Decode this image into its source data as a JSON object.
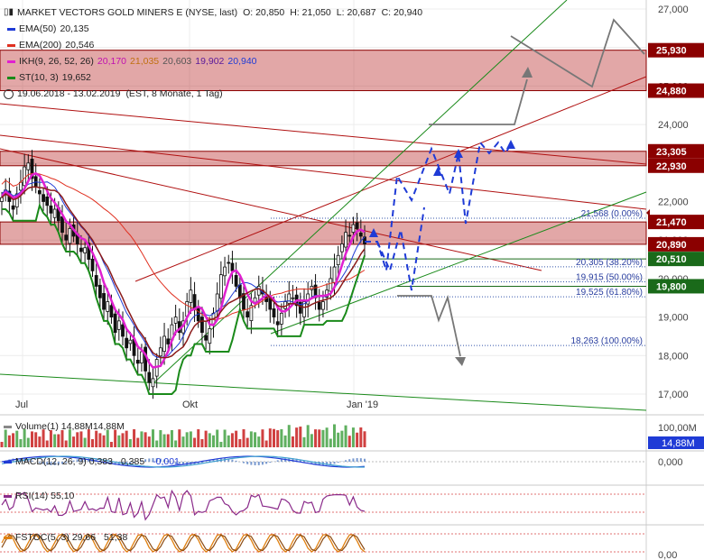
{
  "header": {
    "title": "MARKET VECTORS GOLD MINERS E (NYSE, last)",
    "o": "O: 20,850",
    "h": "H: 21,050",
    "l": "L: 20,687",
    "c": "C: 20,940",
    "range": "19.06.2018 - 13.02.2019",
    "range_note": "(EST, 8 Monate, 1 Tag)"
  },
  "legend": [
    {
      "label": "EMA(50)",
      "value": "20,135",
      "color": "#1f3bd6"
    },
    {
      "label": "EMA(200)",
      "value": "20,546",
      "color": "#e03020"
    },
    {
      "label": "IKH(9, 26, 52, 26)",
      "values": [
        "20,170",
        "21,035",
        "20,603",
        "19,902",
        "20,940"
      ],
      "value_colors": [
        "#d020c0",
        "#d07020",
        "#606060",
        "#6020a0",
        "#1f3bd6"
      ],
      "color": "#e020d0"
    },
    {
      "label": "ST(10, 3)",
      "value": "19,652",
      "color": "#1a8a1a"
    }
  ],
  "panels": {
    "volume": {
      "label": "Volume(1)",
      "value": "14,88M",
      "value2": "14,88M",
      "axis_top": "100,00M",
      "badge": "14,88M"
    },
    "macd": {
      "label": "MACD(12, 26, 9)",
      "values": [
        "0,383",
        "0,385",
        "-0,001"
      ],
      "axis": "0,000"
    },
    "rsi": {
      "label": "RSI(14)",
      "value": "55,10"
    },
    "fstoc": {
      "label": "FSTOC(5, 3)",
      "values": [
        "29,66",
        "51,38"
      ],
      "axis": "0,00"
    }
  },
  "chart_data": {
    "type": "candlestick",
    "x_labels": [
      "Jul",
      "Okt",
      "Jan '19"
    ],
    "y_ticks": [
      "27,000",
      "26,000",
      "25,000",
      "24,000",
      "23,000",
      "22,000",
      "21,000",
      "20,000",
      "19,000",
      "18,000",
      "17,000"
    ],
    "price_tags": [
      {
        "value": 25.93,
        "label": "25,930",
        "color": "#8b0000"
      },
      {
        "value": 24.88,
        "label": "24,880",
        "color": "#8b0000"
      },
      {
        "value": 23.305,
        "label": "23,305",
        "color": "#8b0000"
      },
      {
        "value": 22.93,
        "label": "22,930",
        "color": "#8b0000"
      },
      {
        "value": 21.47,
        "label": "21,470",
        "color": "#8b0000"
      },
      {
        "value": 20.89,
        "label": "20,890",
        "color": "#8b0000"
      },
      {
        "value": 20.51,
        "label": "20,510",
        "color": "#1a6a1a"
      },
      {
        "value": 19.8,
        "label": "19,800",
        "color": "#1a6a1a"
      }
    ],
    "fib_levels": [
      {
        "value": 21.568,
        "label": "21,568 (0.00%)"
      },
      {
        "value": 20.305,
        "label": "20,305 (38.20%)"
      },
      {
        "value": 19.915,
        "label": "19,915 (50.00%)"
      },
      {
        "value": 19.525,
        "label": "19,525 (61.80%)"
      },
      {
        "value": 18.263,
        "label": "18,263 (100.00%)"
      }
    ],
    "resistance_zones": [
      {
        "from": 24.88,
        "to": 25.93
      },
      {
        "from": 22.93,
        "to": 23.305
      },
      {
        "from": 20.89,
        "to": 21.47
      }
    ],
    "close_series": [
      22.1,
      22.3,
      22.0,
      21.8,
      22.2,
      22.5,
      22.9,
      23.0,
      22.6,
      22.4,
      22.2,
      22.0,
      21.9,
      21.7,
      21.8,
      21.5,
      21.2,
      21.0,
      21.3,
      21.1,
      20.9,
      20.7,
      20.8,
      20.5,
      20.2,
      19.8,
      19.5,
      19.2,
      19.4,
      19.0,
      18.6,
      18.9,
      18.5,
      18.2,
      18.4,
      18.0,
      17.8,
      18.1,
      17.6,
      17.3,
      17.4,
      17.9,
      18.2,
      18.5,
      18.3,
      18.8,
      19.0,
      18.6,
      18.9,
      19.4,
      19.7,
      19.2,
      18.9,
      18.6,
      18.4,
      18.7,
      19.1,
      19.6,
      20.1,
      20.3,
      20.4,
      20.2,
      19.8,
      19.5,
      19.2,
      19.0,
      19.3,
      19.5,
      19.8,
      19.6,
      19.4,
      19.2,
      19.0,
      18.8,
      19.1,
      19.4,
      19.6,
      19.5,
      19.3,
      19.1,
      19.4,
      19.6,
      19.8,
      19.5,
      19.2,
      19.4,
      19.7,
      20.0,
      20.3,
      20.6,
      20.9,
      21.2,
      21.1,
      21.4,
      21.3,
      21.1,
      20.9
    ]
  }
}
